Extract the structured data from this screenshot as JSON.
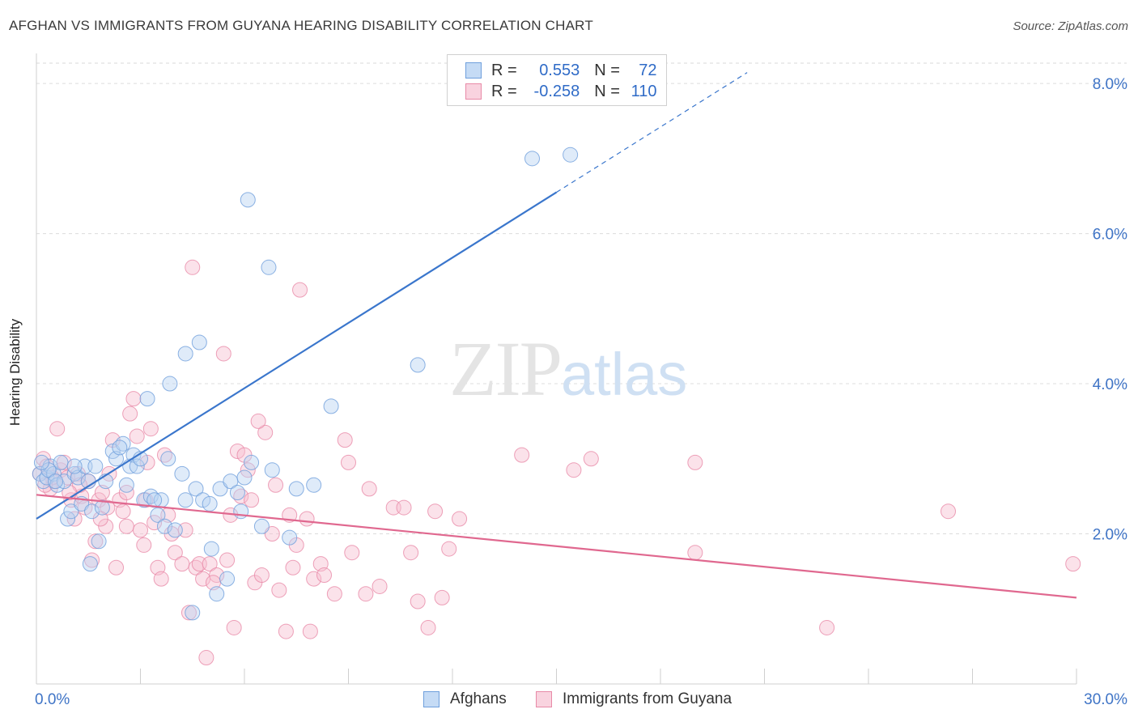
{
  "title": "AFGHAN VS IMMIGRANTS FROM GUYANA HEARING DISABILITY CORRELATION CHART",
  "source": "Source: ZipAtlas.com",
  "watermark": {
    "zip": "ZIP",
    "atlas": "atlas"
  },
  "legend": {
    "rows": [
      {
        "r_label": "R = ",
        "r_value": "0.553",
        "n_label": "N = ",
        "n_value": "72",
        "color": "#a8c8ee",
        "border": "#6f9fdc"
      },
      {
        "r_label": "R = ",
        "r_value": "-0.258",
        "n_label": "N = ",
        "n_value": "110",
        "color": "#f5bccd",
        "border": "#e88aa7"
      }
    ]
  },
  "bottom_legend": [
    {
      "label": "Afghans",
      "color": "#c5dbf5",
      "border": "#6f9fdc"
    },
    {
      "label": "Immigrants from Guyana",
      "color": "#f9d3df",
      "border": "#e88aa7"
    }
  ],
  "chart_data": {
    "type": "scatter",
    "title": "AFGHAN VS IMMIGRANTS FROM GUYANA HEARING DISABILITY CORRELATION CHART",
    "xlabel": "",
    "ylabel": "Hearing Disability",
    "xlim": [
      0,
      30
    ],
    "ylim": [
      0,
      8.4
    ],
    "x_tick_labels": [
      "0.0%",
      "30.0%"
    ],
    "y_ticks": [
      2.0,
      4.0,
      6.0,
      8.0
    ],
    "y_tick_labels": [
      "2.0%",
      "4.0%",
      "6.0%",
      "8.0%"
    ],
    "grid": true,
    "colors": {
      "afghans": "#6f9fdc",
      "guyana": "#e88aa7",
      "afghans_line": "#3a76cc",
      "guyana_line": "#e0688f"
    },
    "series": [
      {
        "name": "Afghans",
        "trend": {
          "x0": 0,
          "y0": 2.2,
          "x1": 15,
          "y1": 6.55,
          "x_dash_end": 20.5
        },
        "points": [
          [
            0.1,
            2.8
          ],
          [
            0.2,
            2.7
          ],
          [
            0.3,
            2.75
          ],
          [
            0.4,
            2.9
          ],
          [
            0.5,
            2.8
          ],
          [
            0.6,
            2.65
          ],
          [
            0.7,
            2.95
          ],
          [
            0.8,
            2.7
          ],
          [
            0.9,
            2.2
          ],
          [
            1.0,
            2.3
          ],
          [
            1.1,
            2.8
          ],
          [
            1.2,
            2.75
          ],
          [
            1.3,
            2.4
          ],
          [
            1.4,
            2.9
          ],
          [
            1.5,
            2.7
          ],
          [
            1.6,
            2.3
          ],
          [
            1.7,
            2.9
          ],
          [
            1.8,
            1.9
          ],
          [
            1.9,
            2.35
          ],
          [
            2.0,
            2.7
          ],
          [
            2.2,
            3.1
          ],
          [
            2.3,
            3.0
          ],
          [
            2.5,
            3.2
          ],
          [
            2.6,
            2.65
          ],
          [
            2.7,
            2.9
          ],
          [
            2.8,
            3.05
          ],
          [
            2.9,
            2.9
          ],
          [
            3.0,
            3.0
          ],
          [
            3.1,
            2.45
          ],
          [
            3.2,
            3.8
          ],
          [
            3.3,
            2.5
          ],
          [
            3.5,
            2.25
          ],
          [
            3.6,
            2.45
          ],
          [
            3.7,
            2.1
          ],
          [
            3.8,
            3.0
          ],
          [
            3.85,
            4.0
          ],
          [
            4.0,
            2.05
          ],
          [
            4.2,
            2.8
          ],
          [
            4.3,
            2.45
          ],
          [
            4.5,
            0.95
          ],
          [
            4.6,
            2.6
          ],
          [
            4.7,
            4.55
          ],
          [
            4.8,
            2.45
          ],
          [
            5.0,
            2.4
          ],
          [
            5.05,
            1.8
          ],
          [
            5.2,
            1.2
          ],
          [
            5.3,
            2.6
          ],
          [
            5.5,
            1.4
          ],
          [
            5.6,
            2.7
          ],
          [
            5.8,
            2.55
          ],
          [
            5.9,
            2.3
          ],
          [
            6.0,
            2.75
          ],
          [
            6.1,
            6.45
          ],
          [
            6.2,
            2.95
          ],
          [
            6.5,
            2.1
          ],
          [
            6.8,
            2.85
          ],
          [
            7.3,
            1.95
          ],
          [
            7.5,
            2.6
          ],
          [
            8.0,
            2.65
          ],
          [
            8.5,
            3.7
          ],
          [
            11.0,
            4.25
          ],
          [
            14.3,
            7.0
          ],
          [
            15.4,
            7.05
          ],
          [
            4.3,
            4.4
          ],
          [
            6.7,
            5.55
          ],
          [
            1.1,
            2.9
          ],
          [
            0.35,
            2.85
          ],
          [
            0.55,
            2.7
          ],
          [
            1.55,
            1.6
          ],
          [
            2.4,
            3.15
          ],
          [
            3.4,
            2.45
          ],
          [
            0.15,
            2.95
          ]
        ]
      },
      {
        "name": "Immigrants from Guyana",
        "trend": {
          "x0": 0,
          "y0": 2.52,
          "x1": 30,
          "y1": 1.15
        },
        "points": [
          [
            0.1,
            2.8
          ],
          [
            0.2,
            3.0
          ],
          [
            0.3,
            2.9
          ],
          [
            0.4,
            2.6
          ],
          [
            0.5,
            2.7
          ],
          [
            0.6,
            3.4
          ],
          [
            0.7,
            2.85
          ],
          [
            0.8,
            2.95
          ],
          [
            0.9,
            2.75
          ],
          [
            1.0,
            2.45
          ],
          [
            1.1,
            2.2
          ],
          [
            1.2,
            2.8
          ],
          [
            1.3,
            2.5
          ],
          [
            1.4,
            2.35
          ],
          [
            1.5,
            2.7
          ],
          [
            1.6,
            1.65
          ],
          [
            1.7,
            1.9
          ],
          [
            1.8,
            2.45
          ],
          [
            1.9,
            2.55
          ],
          [
            2.0,
            2.1
          ],
          [
            2.1,
            2.8
          ],
          [
            2.2,
            3.25
          ],
          [
            2.3,
            1.55
          ],
          [
            2.4,
            2.45
          ],
          [
            2.5,
            2.3
          ],
          [
            2.6,
            2.1
          ],
          [
            2.7,
            3.6
          ],
          [
            2.8,
            3.8
          ],
          [
            2.9,
            3.3
          ],
          [
            3.0,
            2.05
          ],
          [
            3.1,
            1.85
          ],
          [
            3.2,
            2.95
          ],
          [
            3.3,
            3.4
          ],
          [
            3.4,
            2.15
          ],
          [
            3.5,
            1.55
          ],
          [
            3.6,
            1.4
          ],
          [
            3.7,
            3.05
          ],
          [
            3.8,
            2.25
          ],
          [
            3.9,
            2.0
          ],
          [
            4.0,
            1.75
          ],
          [
            4.2,
            1.6
          ],
          [
            4.3,
            2.05
          ],
          [
            4.4,
            0.95
          ],
          [
            4.5,
            5.55
          ],
          [
            4.6,
            1.55
          ],
          [
            4.7,
            1.6
          ],
          [
            4.8,
            1.4
          ],
          [
            4.9,
            0.35
          ],
          [
            5.0,
            1.6
          ],
          [
            5.2,
            1.45
          ],
          [
            5.4,
            4.4
          ],
          [
            5.5,
            1.65
          ],
          [
            5.6,
            2.25
          ],
          [
            5.7,
            0.75
          ],
          [
            5.8,
            3.1
          ],
          [
            5.9,
            2.5
          ],
          [
            6.0,
            3.05
          ],
          [
            6.1,
            2.85
          ],
          [
            6.2,
            2.45
          ],
          [
            6.3,
            1.35
          ],
          [
            6.5,
            1.45
          ],
          [
            6.6,
            3.35
          ],
          [
            6.8,
            2.0
          ],
          [
            6.9,
            2.65
          ],
          [
            7.0,
            1.25
          ],
          [
            7.2,
            0.7
          ],
          [
            7.3,
            2.25
          ],
          [
            7.4,
            1.55
          ],
          [
            7.5,
            1.85
          ],
          [
            7.6,
            5.25
          ],
          [
            7.8,
            2.2
          ],
          [
            8.0,
            1.4
          ],
          [
            8.2,
            1.6
          ],
          [
            8.3,
            1.45
          ],
          [
            8.6,
            1.2
          ],
          [
            8.9,
            3.25
          ],
          [
            9.0,
            2.95
          ],
          [
            9.1,
            1.75
          ],
          [
            9.5,
            1.2
          ],
          [
            9.6,
            2.6
          ],
          [
            9.9,
            1.3
          ],
          [
            10.3,
            2.35
          ],
          [
            10.6,
            2.35
          ],
          [
            10.8,
            1.75
          ],
          [
            11.0,
            1.1
          ],
          [
            11.3,
            0.75
          ],
          [
            11.5,
            2.3
          ],
          [
            11.7,
            1.15
          ],
          [
            11.9,
            1.8
          ],
          [
            12.2,
            2.2
          ],
          [
            14.0,
            3.05
          ],
          [
            15.5,
            2.85
          ],
          [
            16.0,
            3.0
          ],
          [
            19.0,
            2.95
          ],
          [
            19.0,
            1.75
          ],
          [
            22.8,
            0.75
          ],
          [
            26.3,
            2.3
          ],
          [
            29.9,
            1.6
          ],
          [
            7.9,
            0.7
          ],
          [
            1.25,
            2.65
          ],
          [
            2.05,
            2.35
          ],
          [
            3.15,
            2.45
          ],
          [
            0.45,
            2.75
          ],
          [
            0.95,
            2.55
          ],
          [
            5.1,
            1.35
          ],
          [
            6.4,
            3.5
          ],
          [
            2.6,
            2.55
          ],
          [
            1.85,
            2.2
          ],
          [
            0.25,
            2.65
          ]
        ]
      }
    ]
  }
}
